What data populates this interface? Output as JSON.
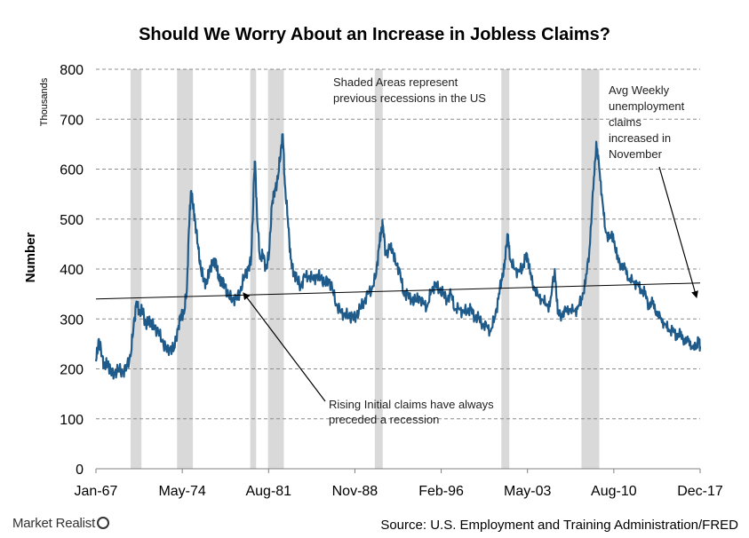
{
  "chart_data": {
    "type": "line",
    "title": "Should We Worry About an Increase in Jobless Claims?",
    "ylabel": "Number",
    "yunit": "Thousands",
    "ylim": [
      0,
      800
    ],
    "yticks": [
      "0",
      "100",
      "200",
      "300",
      "400",
      "500",
      "600",
      "700",
      "800"
    ],
    "xlim": [
      "1967-01",
      "2017-12"
    ],
    "xticks": [
      "Jan-67",
      "May-74",
      "Aug-81",
      "Nov-88",
      "Feb-96",
      "May-03",
      "Aug-10",
      "Dec-17"
    ],
    "grid": "horizontal dashed",
    "series": [
      {
        "color": "#1f5b8a",
        "points": [
          [
            "1967-01",
            215
          ],
          [
            "1967-04",
            260
          ],
          [
            "1967-07",
            225
          ],
          [
            "1967-10",
            205
          ],
          [
            "1968-01",
            210
          ],
          [
            "1968-04",
            195
          ],
          [
            "1968-08",
            190
          ],
          [
            "1968-12",
            200
          ],
          [
            "1969-04",
            192
          ],
          [
            "1969-08",
            205
          ],
          [
            "1969-12",
            225
          ],
          [
            "1970-03",
            285
          ],
          [
            "1970-06",
            335
          ],
          [
            "1970-09",
            310
          ],
          [
            "1970-12",
            320
          ],
          [
            "1971-03",
            290
          ],
          [
            "1971-06",
            295
          ],
          [
            "1971-09",
            290
          ],
          [
            "1971-12",
            285
          ],
          [
            "1972-04",
            275
          ],
          [
            "1972-08",
            255
          ],
          [
            "1972-12",
            240
          ],
          [
            "1973-04",
            240
          ],
          [
            "1973-08",
            240
          ],
          [
            "1973-12",
            280
          ],
          [
            "1974-03",
            310
          ],
          [
            "1974-06",
            310
          ],
          [
            "1974-09",
            360
          ],
          [
            "1974-11",
            480
          ],
          [
            "1975-01",
            555
          ],
          [
            "1975-03",
            530
          ],
          [
            "1975-05",
            500
          ],
          [
            "1975-08",
            450
          ],
          [
            "1975-11",
            400
          ],
          [
            "1976-02",
            380
          ],
          [
            "1976-05",
            370
          ],
          [
            "1976-08",
            400
          ],
          [
            "1976-11",
            410
          ],
          [
            "1977-02",
            420
          ],
          [
            "1977-05",
            380
          ],
          [
            "1977-08",
            375
          ],
          [
            "1977-11",
            370
          ],
          [
            "1978-03",
            345
          ],
          [
            "1978-07",
            340
          ],
          [
            "1978-11",
            340
          ],
          [
            "1979-03",
            355
          ],
          [
            "1979-07",
            385
          ],
          [
            "1979-11",
            400
          ],
          [
            "1980-02",
            420
          ],
          [
            "1980-05",
            590
          ],
          [
            "1980-06",
            615
          ],
          [
            "1980-08",
            500
          ],
          [
            "1980-11",
            420
          ],
          [
            "1981-02",
            430
          ],
          [
            "1981-05",
            400
          ],
          [
            "1981-08",
            430
          ],
          [
            "1981-11",
            530
          ],
          [
            "1982-02",
            560
          ],
          [
            "1982-05",
            580
          ],
          [
            "1982-08",
            640
          ],
          [
            "1982-10",
            670
          ],
          [
            "1982-12",
            570
          ],
          [
            "1983-03",
            500
          ],
          [
            "1983-06",
            420
          ],
          [
            "1983-09",
            390
          ],
          [
            "1983-12",
            380
          ],
          [
            "1984-04",
            365
          ],
          [
            "1984-08",
            385
          ],
          [
            "1984-12",
            385
          ],
          [
            "1985-04",
            380
          ],
          [
            "1985-08",
            385
          ],
          [
            "1985-12",
            385
          ],
          [
            "1986-04",
            370
          ],
          [
            "1986-08",
            380
          ],
          [
            "1986-12",
            360
          ],
          [
            "1987-04",
            330
          ],
          [
            "1987-08",
            315
          ],
          [
            "1987-12",
            310
          ],
          [
            "1988-04",
            305
          ],
          [
            "1988-08",
            305
          ],
          [
            "1988-12",
            305
          ],
          [
            "1989-04",
            320
          ],
          [
            "1989-08",
            335
          ],
          [
            "1989-12",
            350
          ],
          [
            "1990-04",
            360
          ],
          [
            "1990-08",
            385
          ],
          [
            "1990-11",
            440
          ],
          [
            "1991-01",
            470
          ],
          [
            "1991-03",
            490
          ],
          [
            "1991-06",
            430
          ],
          [
            "1991-10",
            440
          ],
          [
            "1992-01",
            440
          ],
          [
            "1992-04",
            410
          ],
          [
            "1992-08",
            400
          ],
          [
            "1992-12",
            350
          ],
          [
            "1993-04",
            350
          ],
          [
            "1993-08",
            340
          ],
          [
            "1993-12",
            335
          ],
          [
            "1994-04",
            345
          ],
          [
            "1994-08",
            330
          ],
          [
            "1994-12",
            325
          ],
          [
            "1995-04",
            355
          ],
          [
            "1995-08",
            370
          ],
          [
            "1995-12",
            360
          ],
          [
            "1996-04",
            350
          ],
          [
            "1996-08",
            340
          ],
          [
            "1996-12",
            350
          ],
          [
            "1997-04",
            320
          ],
          [
            "1997-08",
            320
          ],
          [
            "1997-12",
            315
          ],
          [
            "1998-04",
            315
          ],
          [
            "1998-08",
            320
          ],
          [
            "1998-12",
            305
          ],
          [
            "1999-04",
            300
          ],
          [
            "1999-08",
            290
          ],
          [
            "1999-12",
            285
          ],
          [
            "2000-04",
            275
          ],
          [
            "2000-08",
            300
          ],
          [
            "2000-12",
            340
          ],
          [
            "2001-03",
            380
          ],
          [
            "2001-06",
            400
          ],
          [
            "2001-09",
            470
          ],
          [
            "2001-10",
            455
          ],
          [
            "2001-12",
            420
          ],
          [
            "2002-04",
            400
          ],
          [
            "2002-08",
            395
          ],
          [
            "2002-12",
            400
          ],
          [
            "2003-03",
            420
          ],
          [
            "2003-05",
            430
          ],
          [
            "2003-08",
            390
          ],
          [
            "2003-12",
            365
          ],
          [
            "2004-04",
            345
          ],
          [
            "2004-08",
            340
          ],
          [
            "2004-12",
            330
          ],
          [
            "2005-04",
            325
          ],
          [
            "2005-09",
            400
          ],
          [
            "2005-12",
            310
          ],
          [
            "2006-04",
            310
          ],
          [
            "2006-08",
            315
          ],
          [
            "2006-12",
            320
          ],
          [
            "2007-04",
            315
          ],
          [
            "2007-08",
            320
          ],
          [
            "2007-12",
            340
          ],
          [
            "2008-04",
            370
          ],
          [
            "2008-08",
            440
          ],
          [
            "2008-12",
            560
          ],
          [
            "2009-03",
            655
          ],
          [
            "2009-06",
            600
          ],
          [
            "2009-09",
            540
          ],
          [
            "2009-12",
            480
          ],
          [
            "2010-04",
            460
          ],
          [
            "2010-08",
            470
          ],
          [
            "2010-12",
            420
          ],
          [
            "2011-04",
            410
          ],
          [
            "2011-08",
            400
          ],
          [
            "2011-12",
            380
          ],
          [
            "2012-04",
            375
          ],
          [
            "2012-08",
            370
          ],
          [
            "2012-12",
            360
          ],
          [
            "2013-04",
            350
          ],
          [
            "2013-08",
            330
          ],
          [
            "2013-12",
            330
          ],
          [
            "2014-04",
            315
          ],
          [
            "2014-08",
            300
          ],
          [
            "2014-12",
            290
          ],
          [
            "2015-04",
            280
          ],
          [
            "2015-08",
            275
          ],
          [
            "2015-12",
            270
          ],
          [
            "2016-04",
            265
          ],
          [
            "2016-08",
            260
          ],
          [
            "2016-12",
            255
          ],
          [
            "2017-04",
            245
          ],
          [
            "2017-08",
            240
          ],
          [
            "2017-10",
            260
          ],
          [
            "2017-12",
            245
          ]
        ]
      }
    ],
    "trendline": {
      "from": [
        "1967-01",
        340
      ],
      "to": [
        "2017-12",
        372
      ]
    },
    "recessions": [
      [
        "1969-12",
        "1970-11"
      ],
      [
        "1973-11",
        "1975-03"
      ],
      [
        "1980-01",
        "1980-07"
      ],
      [
        "1981-07",
        "1982-11"
      ],
      [
        "1990-07",
        "1991-03"
      ],
      [
        "2001-03",
        "2001-11"
      ],
      [
        "2007-12",
        "2009-06"
      ]
    ],
    "annotations": [
      {
        "text": [
          "Shaded Areas represent",
          "previous recessions in the US"
        ]
      },
      {
        "text": [
          "Avg Weekly",
          "unemployment",
          "claims",
          "increased in",
          "November"
        ]
      },
      {
        "text": [
          "Rising Initial claims have always",
          "preceded a recession"
        ]
      }
    ]
  },
  "footer": {
    "brand": "Market Realist",
    "source": "Source: U.S. Employment and Training Administration/FRED"
  }
}
